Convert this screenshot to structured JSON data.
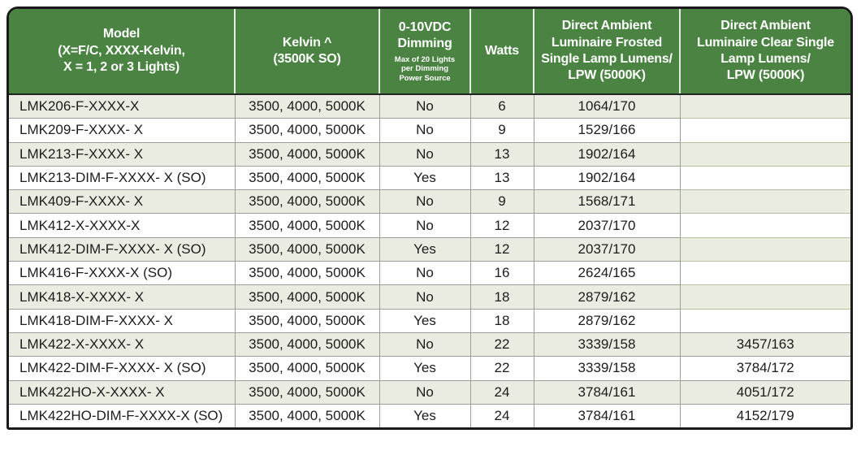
{
  "title": "LED luminaire model specification table",
  "colors": {
    "header_green": "#4b8343",
    "sage_green": "#b4c39e",
    "stripe_light": "#ebece1",
    "row_white": "#ffffff",
    "grid_line": "#9aa095",
    "outer_border": "#1a1a1a",
    "header_text": "#ffffff",
    "body_text": "#1c1c1c"
  },
  "table": {
    "columns": [
      {
        "id": "model",
        "label": "Model\n(X=F/C, XXXX-Kelvin,\nX = 1, 2 or 3 Lights)"
      },
      {
        "id": "kelvin",
        "label": "Kelvin ^\n(3500K SO)"
      },
      {
        "id": "dimming",
        "label": "0-10VDC\nDimming",
        "sublabel": "Max of 20 Lights\nper Dimming\nPower Source"
      },
      {
        "id": "watts",
        "label": "Watts"
      },
      {
        "id": "frosted",
        "label": "Direct Ambient\nLuminaire Frosted\nSingle Lamp Lumens/\nLPW (5000K)"
      },
      {
        "id": "clear",
        "label": "Direct Ambient\nLuminaire Clear Single\nLamp Lumens/\nLPW (5000K)"
      }
    ]
  },
  "chart_data": {
    "type": "table",
    "columns": [
      "Model (X=F/C, XXXX-Kelvin, X = 1, 2 or 3 Lights)",
      "Kelvin ^ (3500K SO)",
      "0-10VDC Dimming (Max of 20 Lights per Dimming Power Source)",
      "Watts",
      "Direct Ambient Luminaire Frosted Single Lamp Lumens/LPW (5000K)",
      "Direct Ambient Luminaire Clear Single Lamp Lumens/LPW (5000K)"
    ],
    "rows": [
      [
        "LMK206-F-XXXX-X",
        "3500, 4000, 5000K",
        "No",
        "6",
        "1064/170",
        ""
      ],
      [
        "LMK209-F-XXXX- X",
        "3500, 4000, 5000K",
        "No",
        "9",
        "1529/166",
        ""
      ],
      [
        "LMK213-F-XXXX- X",
        "3500, 4000, 5000K",
        "No",
        "13",
        "1902/164",
        ""
      ],
      [
        "LMK213-DIM-F-XXXX- X (SO)",
        "3500, 4000, 5000K",
        "Yes",
        "13",
        "1902/164",
        ""
      ],
      [
        "LMK409-F-XXXX- X",
        "3500, 4000, 5000K",
        "No",
        "9",
        "1568/171",
        ""
      ],
      [
        "LMK412-X-XXXX-X",
        "3500, 4000, 5000K",
        "No",
        "12",
        "2037/170",
        ""
      ],
      [
        "LMK412-DIM-F-XXXX- X (SO)",
        "3500, 4000, 5000K",
        "Yes",
        "12",
        "2037/170",
        ""
      ],
      [
        "LMK416-F-XXXX-X (SO)",
        "3500, 4000, 5000K",
        "No",
        "16",
        "2624/165",
        ""
      ],
      [
        "LMK418-X-XXXX- X",
        "3500, 4000, 5000K",
        "No",
        "18",
        "2879/162",
        ""
      ],
      [
        "LMK418-DIM-F-XXXX- X",
        "3500, 4000, 5000K",
        "Yes",
        "18",
        "2879/162",
        ""
      ],
      [
        "LMK422-X-XXXX- X",
        "3500, 4000, 5000K",
        "No",
        "22",
        "3339/158",
        "3457/163"
      ],
      [
        "LMK422-DIM-F-XXXX- X (SO)",
        "3500, 4000, 5000K",
        "Yes",
        "22",
        "3339/158",
        "3784/172"
      ],
      [
        "LMK422HO-X-XXXX- X",
        "3500, 4000, 5000K",
        "No",
        "24",
        "3784/161",
        "4051/172"
      ],
      [
        "LMK422HO-DIM-F-XXXX-X (SO)",
        "3500, 4000, 5000K",
        "Yes",
        "24",
        "3784/161",
        "4152/179"
      ]
    ]
  }
}
